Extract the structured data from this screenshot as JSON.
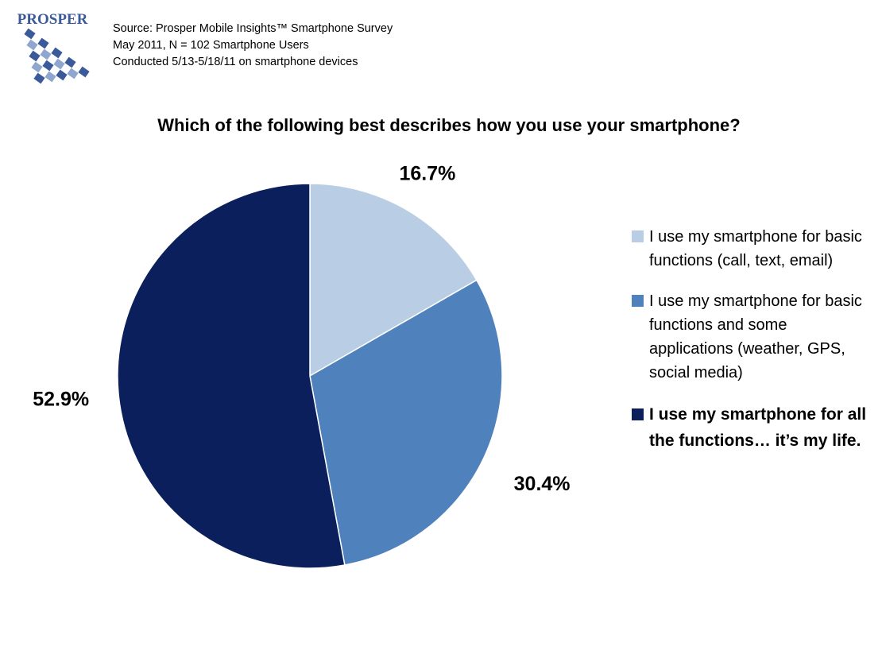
{
  "logo": {
    "text": "PROSPER",
    "icon": "prosper-logo-grid-icon",
    "color": "#3a5a99"
  },
  "source": {
    "line1": "Source: Prosper Mobile Insights™ Smartphone Survey",
    "line2": "May 2011, N = 102 Smartphone Users",
    "line3": "Conducted 5/13-5/18/11 on smartphone devices"
  },
  "chart_data": {
    "type": "pie",
    "title": "Which of the following best describes how you use your smartphone?",
    "slices": [
      {
        "label": "I use my smartphone for basic functions (call, text, email)",
        "value": 16.7,
        "display": "16.7%",
        "color": "#b9cde4"
      },
      {
        "label": "I use my smartphone for basic functions and some applications (weather, GPS, social media)",
        "value": 30.4,
        "display": "30.4%",
        "color": "#4f81bd"
      },
      {
        "label": "I use my smartphone for all the functions… it’s my life.",
        "value": 52.9,
        "display": "52.9%",
        "color": "#0b1f5c"
      }
    ],
    "legend_position": "right",
    "start_angle": "12 o'clock, clockwise"
  }
}
